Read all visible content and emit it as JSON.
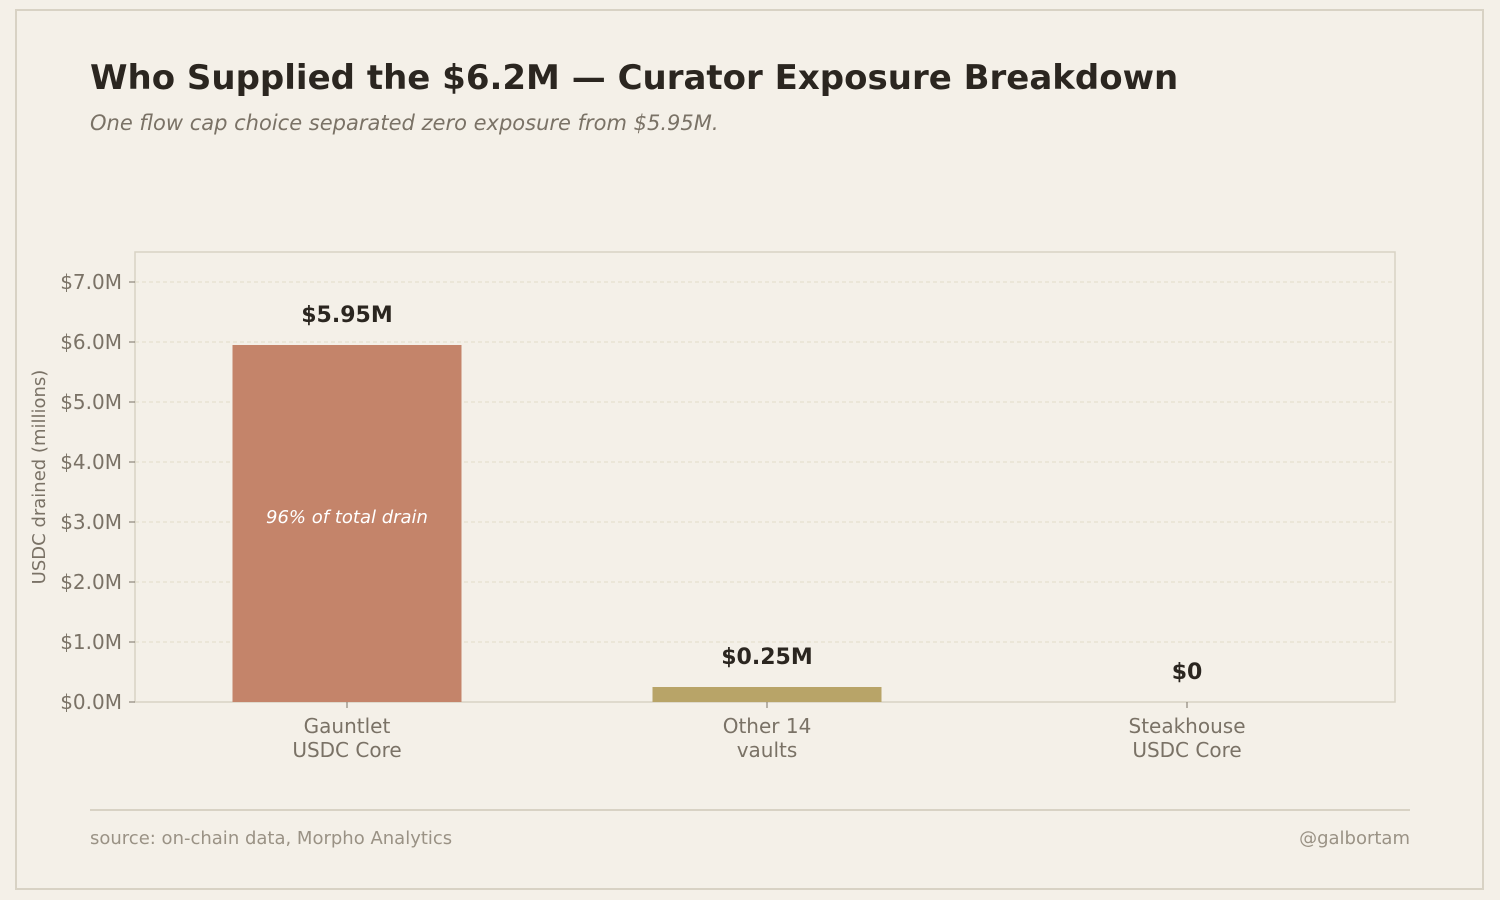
{
  "header": {
    "title": "Who Supplied the $6.2M — Curator Exposure Breakdown",
    "subtitle": "One flow cap choice separated zero exposure from $5.95M."
  },
  "footer": {
    "source": "source: on-chain data, Morpho Analytics",
    "handle": "@galbortam"
  },
  "chart_data": {
    "type": "bar",
    "title": "Who Supplied the $6.2M — Curator Exposure Breakdown",
    "subtitle": "One flow cap choice separated zero exposure from $5.95M.",
    "xlabel": "",
    "ylabel": "USDC drained (millions)",
    "ylim": [
      0,
      7.5
    ],
    "y_ticks": [
      0,
      1,
      2,
      3,
      4,
      5,
      6,
      7
    ],
    "y_tick_labels": [
      "$0.0M",
      "$1.0M",
      "$2.0M",
      "$3.0M",
      "$4.0M",
      "$5.0M",
      "$6.0M",
      "$7.0M"
    ],
    "grid": true,
    "categories": [
      [
        "Gauntlet",
        "USDC Core"
      ],
      [
        "Other 14",
        "vaults"
      ],
      [
        "Steakhouse",
        "USDC Core"
      ]
    ],
    "values": [
      5.95,
      0.25,
      0
    ],
    "value_labels": [
      "$5.95M",
      "$0.25M",
      "$0"
    ],
    "colors": [
      "#c4846a",
      "#b8a468",
      "#8fa08a"
    ],
    "annotations": [
      {
        "category_index": 0,
        "text": "96% of total drain",
        "y": 3.1
      }
    ]
  }
}
